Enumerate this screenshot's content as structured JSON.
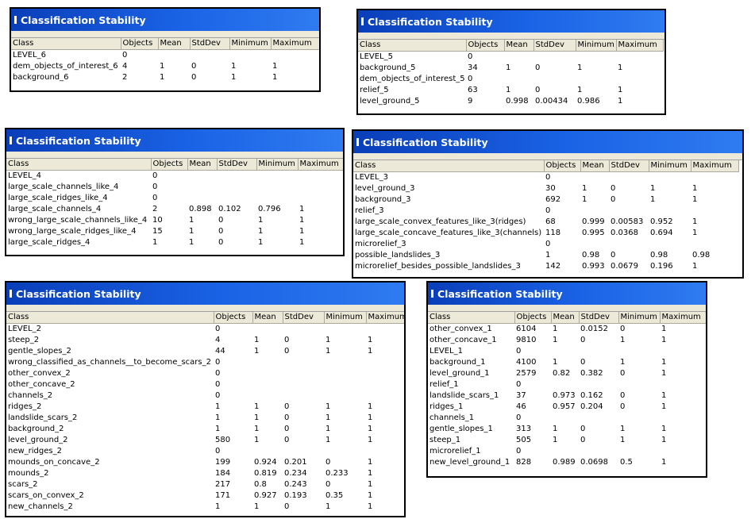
{
  "columns": [
    "Class",
    "Objects",
    "Mean",
    "StdDev",
    "Minimum",
    "Maximum"
  ],
  "panels": [
    {
      "title": "Classification Stability",
      "rows": [
        [
          "LEVEL_6",
          "0",
          "",
          "",
          "",
          ""
        ],
        [
          "dem_objects_of_interest_6",
          "4",
          "1",
          "0",
          "1",
          "1"
        ],
        [
          "background_6",
          "2",
          "1",
          "0",
          "1",
          "1"
        ]
      ]
    },
    {
      "title": "Classification Stability",
      "rows": [
        [
          "LEVEL_5",
          "0",
          "",
          "",
          "",
          ""
        ],
        [
          "background_5",
          "34",
          "1",
          "0",
          "1",
          "1"
        ],
        [
          "dem_objects_of_interest_5",
          "0",
          "",
          "",
          "",
          ""
        ],
        [
          "relief_5",
          "63",
          "1",
          "0",
          "1",
          "1"
        ],
        [
          "level_ground_5",
          "9",
          "0.998",
          "0.00434",
          "0.986",
          "1"
        ]
      ]
    },
    {
      "title": "Classification Stability",
      "rows": [
        [
          "LEVEL_4",
          "0",
          "",
          "",
          "",
          ""
        ],
        [
          "large_scale_channels_like_4",
          "0",
          "",
          "",
          "",
          ""
        ],
        [
          "large_scale_ridges_like_4",
          "0",
          "",
          "",
          "",
          ""
        ],
        [
          "large_scale_channels_4",
          "2",
          "0.898",
          "0.102",
          "0.796",
          "1"
        ],
        [
          "wrong_large_scale_channels_like_4",
          "10",
          "1",
          "0",
          "1",
          "1"
        ],
        [
          "wrong_large_scale_ridges_like_4",
          "15",
          "1",
          "0",
          "1",
          "1"
        ],
        [
          "large_scale_ridges_4",
          "1",
          "1",
          "0",
          "1",
          "1"
        ]
      ]
    },
    {
      "title": "Classification Stability",
      "rows": [
        [
          "LEVEL_3",
          "0",
          "",
          "",
          "",
          ""
        ],
        [
          "level_ground_3",
          "30",
          "1",
          "0",
          "1",
          "1"
        ],
        [
          "background_3",
          "692",
          "1",
          "0",
          "1",
          "1"
        ],
        [
          "relief_3",
          "0",
          "",
          "",
          "",
          ""
        ],
        [
          "large_scale_convex_features_like_3(ridges)",
          "68",
          "0.999",
          "0.00583",
          "0.952",
          "1"
        ],
        [
          "large_scale_concave_features_like_3(channels)",
          "118",
          "0.995",
          "0.0368",
          "0.694",
          "1"
        ],
        [
          "microrelief_3",
          "0",
          "",
          "",
          "",
          ""
        ],
        [
          "possible_landslides_3",
          "1",
          "0.98",
          "0",
          "0.98",
          "0.98"
        ],
        [
          "microrelief_besides_possible_landslides_3",
          "142",
          "0.993",
          "0.0679",
          "0.196",
          "1"
        ]
      ]
    },
    {
      "title": "Classification Stability",
      "rows": [
        [
          "LEVEL_2",
          "0",
          "",
          "",
          "",
          ""
        ],
        [
          "steep_2",
          "4",
          "1",
          "0",
          "1",
          "1"
        ],
        [
          "gentle_slopes_2",
          "44",
          "1",
          "0",
          "1",
          "1"
        ],
        [
          "wrong_classified_as_channels__to_become_scars_2",
          "0",
          "",
          "",
          "",
          ""
        ],
        [
          "other_convex_2",
          "0",
          "",
          "",
          "",
          ""
        ],
        [
          "other_concave_2",
          "0",
          "",
          "",
          "",
          ""
        ],
        [
          "channels_2",
          "0",
          "",
          "",
          "",
          ""
        ],
        [
          "ridges_2",
          "1",
          "1",
          "0",
          "1",
          "1"
        ],
        [
          "landslide_scars_2",
          "1",
          "1",
          "0",
          "1",
          "1"
        ],
        [
          "background_2",
          "1",
          "1",
          "0",
          "1",
          "1"
        ],
        [
          "level_ground_2",
          "580",
          "1",
          "0",
          "1",
          "1"
        ],
        [
          "new_ridges_2",
          "0",
          "",
          "",
          "",
          ""
        ],
        [
          "mounds_on_concave_2",
          "199",
          "0.924",
          "0.201",
          "0",
          "1"
        ],
        [
          "mounds_2",
          "184",
          "0.819",
          "0.234",
          "0.233",
          "1"
        ],
        [
          "scars_2",
          "217",
          "0.8",
          "0.243",
          "0",
          "1"
        ],
        [
          "scars_on_convex_2",
          "171",
          "0.927",
          "0.193",
          "0.35",
          "1"
        ],
        [
          "new_channels_2",
          "1",
          "1",
          "0",
          "1",
          "1"
        ]
      ]
    },
    {
      "title": "Classification Stability",
      "rows": [
        [
          "other_convex_1",
          "6104",
          "1",
          "0.0152",
          "0",
          "1"
        ],
        [
          "other_concave_1",
          "9810",
          "1",
          "0",
          "1",
          "1"
        ],
        [
          "LEVEL_1",
          "0",
          "",
          "",
          "",
          ""
        ],
        [
          "background_1",
          "4100",
          "1",
          "0",
          "1",
          "1"
        ],
        [
          "level_ground_1",
          "2579",
          "0.82",
          "0.382",
          "0",
          "1"
        ],
        [
          "relief_1",
          "0",
          "",
          "",
          "",
          ""
        ],
        [
          "landslide_scars_1",
          "37",
          "0.973",
          "0.162",
          "0",
          "1"
        ],
        [
          "ridges_1",
          "46",
          "0.957",
          "0.204",
          "0",
          "1"
        ],
        [
          "channels_1",
          "0",
          "",
          "",
          "",
          ""
        ],
        [
          "gentle_slopes_1",
          "313",
          "1",
          "0",
          "1",
          "1"
        ],
        [
          "steep_1",
          "505",
          "1",
          "0",
          "1",
          "1"
        ],
        [
          "microrelief_1",
          "0",
          "",
          "",
          "",
          ""
        ],
        [
          "new_level_ground_1",
          "828",
          "0.989",
          "0.0698",
          "0.5",
          "1"
        ]
      ]
    }
  ]
}
